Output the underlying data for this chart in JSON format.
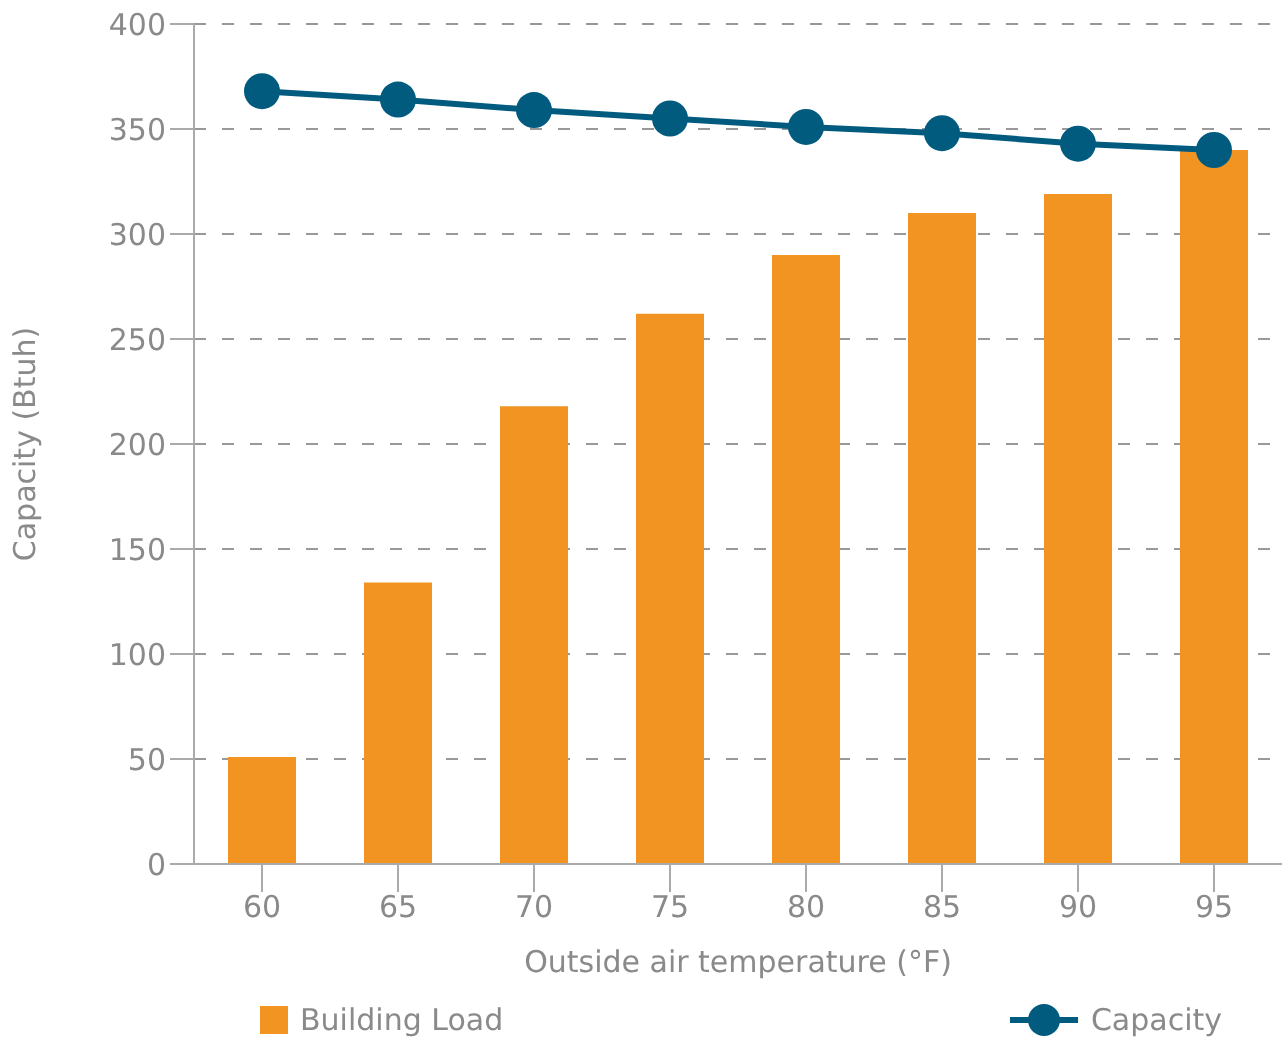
{
  "chart_data": {
    "type": "bar",
    "xlabel": "Outside air temperature (°F)",
    "ylabel": "Capacity (Btuh)",
    "categories": [
      "60",
      "65",
      "70",
      "75",
      "80",
      "85",
      "90",
      "95"
    ],
    "series": [
      {
        "name": "Building Load",
        "color": "#f19422",
        "values": [
          51,
          134,
          218,
          262,
          290,
          310,
          319,
          340
        ]
      },
      {
        "name": "Capacity",
        "type": "line",
        "color": "#005b7f",
        "values": [
          368,
          364,
          359,
          355,
          351,
          348,
          343,
          340
        ]
      }
    ],
    "ylim": [
      0,
      400
    ],
    "yticks": [
      0,
      50,
      100,
      150,
      200,
      250,
      300,
      350,
      400
    ],
    "grid": "y",
    "legend": "bottom",
    "marker": "circle",
    "line_style": "solid"
  }
}
